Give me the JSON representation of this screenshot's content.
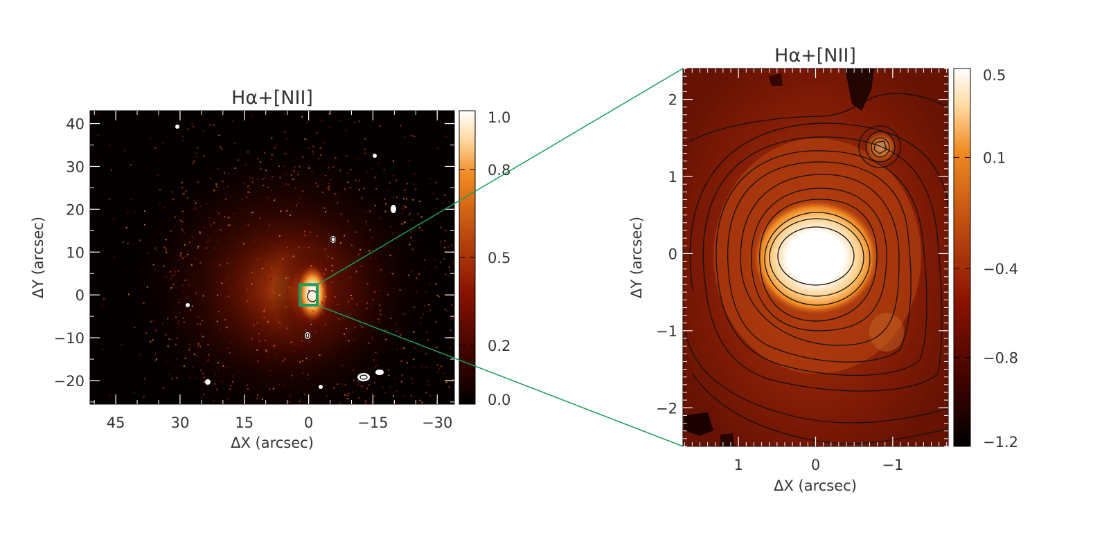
{
  "chart_data": [
    {
      "type": "heatmap",
      "title": "Hα+[NII]",
      "xlabel": "ΔX (arcsec)",
      "ylabel": "ΔY (arcsec)",
      "xlim": [
        51,
        -34
      ],
      "ylim": [
        -25.5,
        43
      ],
      "x_ticks": [
        45,
        30,
        15,
        0,
        -15,
        -30
      ],
      "x_tick_labels": [
        "45",
        "30",
        "15",
        "0",
        "−15",
        "−30"
      ],
      "y_ticks": [
        40,
        30,
        20,
        10,
        0,
        -10,
        -20
      ],
      "y_tick_labels": [
        "40",
        "30",
        "20",
        "10",
        "0",
        "−10",
        "−20"
      ],
      "colorbar": {
        "range": [
          0.0,
          1.0
        ],
        "ticks": [
          1.0,
          0.8,
          0.5,
          0.2,
          0.0
        ],
        "tick_labels": [
          "1.0",
          "0.8",
          "0.5",
          "0.2",
          "0.0"
        ]
      },
      "colormap": [
        "#000000",
        "#3a0300",
        "#8a1200",
        "#c25010",
        "#f08a20",
        "#ffd9a0",
        "#ffffff"
      ],
      "zoom_box": {
        "x": [
          2,
          -2
        ],
        "y": [
          -2.4,
          2.4
        ],
        "color": "#1a9e5a"
      },
      "grid": false
    },
    {
      "type": "heatmap",
      "title": "Hα+[NII]",
      "xlabel": "ΔX (arcsec)",
      "ylabel": "ΔY (arcsec)",
      "xlim": [
        1.72,
        -1.72
      ],
      "ylim": [
        -2.5,
        2.4
      ],
      "x_ticks": [
        1,
        0,
        -1
      ],
      "x_tick_labels": [
        "1",
        "0",
        "−1"
      ],
      "y_ticks": [
        2,
        1,
        0,
        -1,
        -2
      ],
      "y_tick_labels": [
        "2",
        "1",
        "0",
        "−1",
        "−2"
      ],
      "colorbar": {
        "range": [
          -1.2,
          0.5
        ],
        "ticks": [
          0.5,
          0.1,
          -0.4,
          -0.8,
          -1.2
        ],
        "tick_labels": [
          "0.5",
          "0.1",
          "−0.4",
          "−0.8",
          "−1.2"
        ]
      },
      "colormap": [
        "#000000",
        "#3a0300",
        "#8a1200",
        "#c25010",
        "#f08a20",
        "#ffd9a0",
        "#ffffff"
      ],
      "contours": true,
      "grid": false
    }
  ],
  "connector_color": "#1a9e5a"
}
